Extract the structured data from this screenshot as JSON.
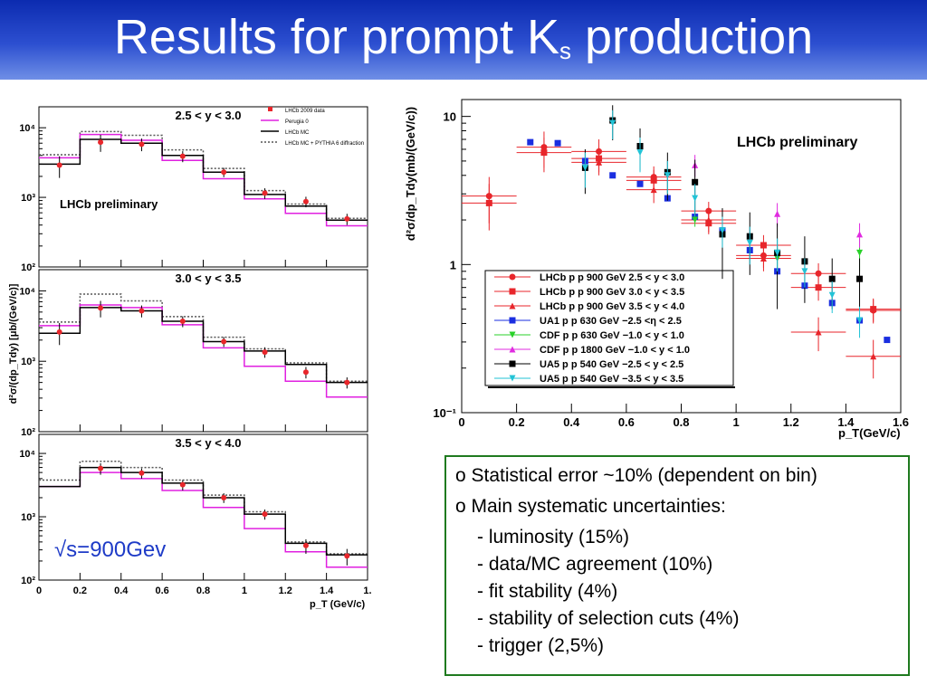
{
  "slide": {
    "title_main": "Results for prompt K",
    "title_sub": "s",
    "title_tail": " production",
    "colors": {
      "title_bar": "#1a39c0",
      "accent_green": "#1f7a1f"
    }
  },
  "notes": {
    "bullet1": "o Statistical error ~10% (dependent on bin)",
    "bullet2": "o Main systematic uncertainties:",
    "items": [
      "- luminosity (15%)",
      "- data/MC agreement (10%)",
      "- fit stability (4%)",
      "- stability of selection cuts (4%)",
      "- trigger (2,5%)"
    ]
  },
  "chart_data": [
    {
      "type": "line",
      "log_y": true,
      "ylim": [
        100,
        20000
      ],
      "xlim": [
        0,
        1.6
      ],
      "x_ticks": [
        "0",
        "0.2",
        "0.4",
        "0.6",
        "0.8",
        "1",
        "1.2",
        "1.4",
        "1."
      ],
      "y_ticks": [
        "10²",
        "10³",
        "10⁴"
      ],
      "xlabel": "p_T (GeV/c)",
      "ylabel": "d²σ/(dp_Tdy)  [μb/(GeV/c)]",
      "annotation": "√s=900Gev",
      "legend": [
        "LHCb 2009 data",
        "Perugia 0",
        "LHCb MC",
        "LHCb MC + PYTHIA 6 diffraction"
      ],
      "bin_edges": [
        0,
        0.2,
        0.4,
        0.6,
        0.8,
        1.0,
        1.2,
        1.4,
        1.6
      ],
      "panels": [
        {
          "label": "2.5 < y < 3.0",
          "panel_label": "LHCb preliminary",
          "data_x": [
            0.1,
            0.3,
            0.5,
            0.7,
            0.9,
            1.1,
            1.3,
            1.5
          ],
          "data_y": [
            2900,
            6200,
            5800,
            3900,
            2300,
            1150,
            870,
            490
          ],
          "data_err": [
            1000,
            1700,
            1200,
            700,
            350,
            200,
            150,
            90
          ],
          "perugia": [
            3700,
            8000,
            6600,
            3400,
            1850,
            950,
            590,
            390
          ],
          "mc": [
            3000,
            6800,
            6000,
            4000,
            2300,
            1100,
            750,
            470
          ],
          "mc_diffraction": [
            4100,
            8800,
            7800,
            4800,
            2600,
            1250,
            800,
            500
          ]
        },
        {
          "label": "3.0 < y < 3.5",
          "panel_label": "",
          "data_x": [
            0.1,
            0.3,
            0.5,
            0.7,
            0.9,
            1.1,
            1.3,
            1.5
          ],
          "data_y": [
            2600,
            5700,
            5200,
            3700,
            1900,
            1350,
            700,
            500
          ],
          "data_err": [
            900,
            1500,
            1000,
            650,
            300,
            230,
            130,
            90
          ],
          "perugia": [
            3200,
            6300,
            5800,
            3300,
            1550,
            850,
            520,
            310
          ],
          "mc": [
            2500,
            5800,
            5200,
            3700,
            1900,
            1400,
            900,
            500
          ],
          "mc_diffraction": [
            3600,
            9000,
            7200,
            4300,
            2200,
            1500,
            950,
            520
          ]
        },
        {
          "label": "3.5 < y < 4.0",
          "panel_label": "",
          "data_x": [
            0.1,
            0.3,
            0.5,
            0.7,
            0.9,
            1.1,
            1.3,
            1.5
          ],
          "data_y": [
            0,
            5800,
            4900,
            3200,
            2000,
            1100,
            350,
            240
          ],
          "data_err": [
            0,
            1200,
            900,
            600,
            350,
            200,
            90,
            70
          ],
          "perugia": [
            3000,
            5000,
            4000,
            2600,
            1400,
            650,
            280,
            160
          ],
          "mc": [
            3000,
            6000,
            5000,
            3400,
            2000,
            1100,
            380,
            250
          ],
          "mc_diffraction": [
            3800,
            7500,
            6000,
            3800,
            2200,
            1200,
            400,
            260
          ]
        }
      ]
    },
    {
      "type": "scatter",
      "log_y": true,
      "ylim": [
        0.1,
        13
      ],
      "xlim": [
        0,
        1.6
      ],
      "x_ticks": [
        "0",
        "0.2",
        "0.4",
        "0.6",
        "0.8",
        "1",
        "1.2",
        "1.4",
        "1.6"
      ],
      "y_ticks": [
        "10⁻¹",
        "1",
        "10"
      ],
      "xlabel": "p_T(GeV/c)",
      "ylabel": "d²σ/dp_Tdy(mb/(GeV/c))",
      "annotation": "LHCb preliminary",
      "series": [
        {
          "name": "LHCb p p  900 GeV  2.5 < y <  3.0",
          "color": "#e8262b",
          "marker": "circle",
          "x": [
            0.1,
            0.3,
            0.5,
            0.7,
            0.9,
            1.1,
            1.3,
            1.5
          ],
          "y": [
            2.9,
            6.2,
            5.8,
            3.9,
            2.3,
            1.15,
            0.87,
            0.49
          ],
          "xerr": 0.1,
          "yerr": [
            1.0,
            1.7,
            1.2,
            0.7,
            0.35,
            0.2,
            0.15,
            0.09
          ]
        },
        {
          "name": "LHCb p p  900 GeV  3.0 < y <  3.5",
          "color": "#e8262b",
          "marker": "square",
          "x": [
            0.1,
            0.3,
            0.5,
            0.7,
            0.9,
            1.1,
            1.3,
            1.5
          ],
          "y": [
            2.6,
            5.7,
            5.2,
            3.7,
            1.9,
            1.35,
            0.7,
            0.5
          ],
          "xerr": 0.1,
          "yerr": [
            0.9,
            1.5,
            1.0,
            0.65,
            0.3,
            0.23,
            0.13,
            0.09
          ]
        },
        {
          "name": "LHCb p p  900 GeV  3.5 < y <  4.0",
          "color": "#e8262b",
          "marker": "triangle",
          "x": [
            0.5,
            0.7,
            0.9,
            1.1,
            1.3,
            1.5
          ],
          "y": [
            4.9,
            3.2,
            2.0,
            1.1,
            0.35,
            0.24
          ],
          "xerr": 0.1,
          "yerr": [
            0.9,
            0.6,
            0.35,
            0.2,
            0.09,
            0.07
          ]
        },
        {
          "name": "UA1   p p    630 GeV −2.5 <η <  2.5",
          "color": "#1a2ee0",
          "marker": "square",
          "x": [
            0.25,
            0.35,
            0.45,
            0.55,
            0.65,
            0.75,
            0.85,
            0.95,
            1.05,
            1.15,
            1.25,
            1.35,
            1.45,
            1.55
          ],
          "y": [
            6.7,
            6.6,
            5.0,
            4.0,
            3.5,
            2.8,
            2.1,
            1.7,
            1.25,
            0.9,
            0.72,
            0.55,
            0.42,
            0.31
          ],
          "xerr": 0,
          "yerr": [
            0,
            0,
            0,
            0,
            0,
            0,
            0,
            0,
            0,
            0,
            0,
            0,
            0,
            0
          ]
        },
        {
          "name": "CDF   p p    630 GeV −1.0 < y < 1.0",
          "color": "#29d129",
          "marker": "down",
          "x": [
            0.85,
            1.15,
            1.45
          ],
          "y": [
            2.0,
            1.1,
            1.2
          ],
          "xerr": 0,
          "yerr": [
            0.2,
            0.2,
            0.3
          ]
        },
        {
          "name": "CDF   p p  1800 GeV −1.0 < y < 1.0",
          "color": "#e02be0",
          "marker": "triangle",
          "x": [
            0.85,
            1.15,
            1.45
          ],
          "y": [
            4.7,
            2.2,
            1.6
          ],
          "xerr": 0,
          "yerr": [
            0.8,
            0.4,
            0.3
          ]
        },
        {
          "name": "UA5   p p    540 GeV −2.5 < y < 2.5",
          "color": "#000000",
          "marker": "square",
          "x": [
            0.45,
            0.55,
            0.65,
            0.75,
            0.85,
            0.95,
            1.05,
            1.15,
            1.25,
            1.35,
            1.45
          ],
          "y": [
            4.5,
            9.4,
            6.3,
            4.2,
            3.6,
            1.6,
            1.55,
            1.2,
            1.05,
            0.8,
            0.8
          ],
          "xerr": 0,
          "yerr": [
            1.5,
            2.5,
            2.0,
            1.5,
            1.5,
            0.8,
            0.7,
            0.7,
            0.5,
            0.3,
            0.3
          ]
        },
        {
          "name": "UA5   p p    540 GeV −3.5 < y < 3.5",
          "color": "#22c3d6",
          "marker": "down",
          "x": [
            0.45,
            0.55,
            0.65,
            0.75,
            0.85,
            0.95,
            1.05,
            1.15,
            1.25,
            1.35,
            1.45
          ],
          "y": [
            4.5,
            9.0,
            5.7,
            4.0,
            2.8,
            1.7,
            1.4,
            1.2,
            0.9,
            0.62,
            0.42
          ],
          "xerr": 0,
          "yerr": [
            1.2,
            2.0,
            1.5,
            1.0,
            0.7,
            0.4,
            0.4,
            0.3,
            0.2,
            0.15,
            0.1
          ]
        }
      ]
    }
  ]
}
